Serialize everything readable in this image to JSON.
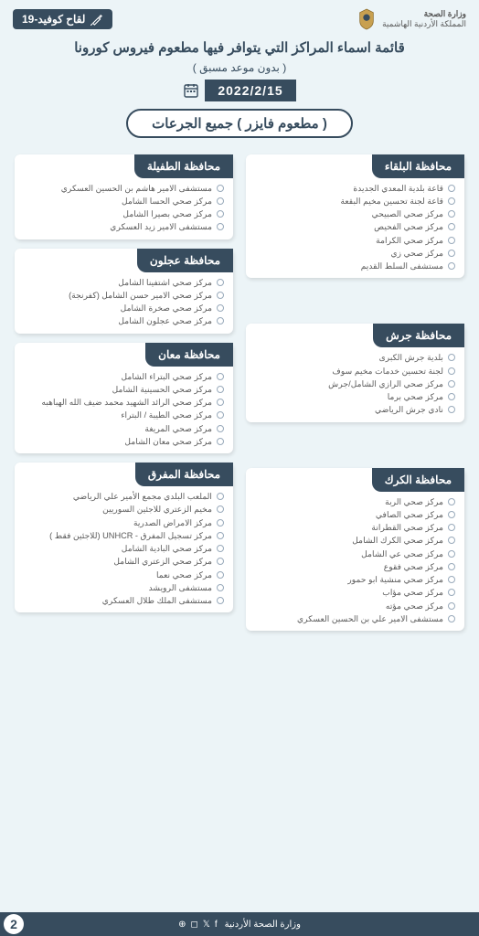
{
  "colors": {
    "accent": "#374c5e",
    "background": "#ecf4f7",
    "card_bg": "#ffffff",
    "text_muted": "#595959",
    "bullet_border": "#99aabb"
  },
  "topbar": {
    "ministry_line1": "وزارة الصحة",
    "ministry_line2": "المملكة الأردنية الهاشمية",
    "vaccine_tag": "لقاح كوفيد-19"
  },
  "title": {
    "main": "قائمة اسماء المراكز التي يتوافر فيها مطعوم فيروس كورونا",
    "sub": "( بدون موعد مسبق )",
    "date": "2022/2/15",
    "vaccine_type": "( مطعوم فايزر )  جميع الجرعات"
  },
  "right_cards": [
    {
      "header": "محافظة البلقاء",
      "items": [
        "قاعة بلدية المعدي الجديدة",
        "قاعة لجنة تحسين مخيم البقعة",
        "مركز صحي  الصبيحي",
        "مركز صحي الفحيص",
        "مركز صحي الكرامة",
        "مركز صحي زي",
        "مستشفى السلط القديم"
      ]
    },
    {
      "header": "محافظة جرش",
      "items": [
        "بلدية جرش الكبرى",
        "لجنة تحسين خدمات مخيم سوف",
        "مركز صحي الرازي الشامل/جرش",
        "مركز صحي برما",
        "نادي جرش الرياضي"
      ]
    },
    {
      "header": "محافظة الكرك",
      "items": [
        "مركز صحي الربة",
        "مركز صحي الصافي",
        "مركز صحي القطرانة",
        "مركز صحي الكرك الشامل",
        "مركز صحي عي الشامل",
        "مركز صحي فقوع",
        "مركز صحي منشية ابو حمور",
        "مركز صحي مؤاب",
        "مركز صحي مؤته",
        "مستشفى الامير علي بن الحسين العسكري"
      ]
    }
  ],
  "left_cards": [
    {
      "header": "محافظة الطفيلة",
      "items": [
        "مستشفى الامير هاشم بن الحسين العسكري",
        "مركز صحي الحسا الشامل",
        "مركز صحي بصيرا الشامل",
        "مستشفى الامير زيد العسكري"
      ]
    },
    {
      "header": "محافظة عجلون",
      "items": [
        "مركز صحي اشتفينا الشامل",
        "مركز صحي الامير حسن الشامل (كفرنجة)",
        "مركز صحي صخرة الشامل",
        "مركز صحي عجلون الشامل"
      ]
    },
    {
      "header": "محافظة معان",
      "items": [
        "مركز صحي البتراء الشامل",
        "مركز صحي الحسينية الشامل",
        "مركز صحي الرائد الشهيد محمد ضيف الله الهباهبه",
        "مركز صحي الطيبة / البتراء",
        "مركز صحي المريغة",
        "مركز صحي معان الشامل"
      ]
    },
    {
      "header": "محافظة المفرق",
      "items": [
        "الملعب البلدي مجمع الأمير علي الرياضي",
        "مخيم الزعتري للاجئين السوريين",
        "مركز الامراض الصدرية",
        "مركز تسجيل المفرق - UNHCR (للاجئين فقط )",
        "مركز صحي البادية الشامل",
        "مركز صحي الزعتري الشامل",
        "مركز صحي نعما",
        "مستشفى الرويشد",
        "مستشفى الملك طلال العسكري"
      ]
    }
  ],
  "footer": {
    "text": "وزارة الصحة الأردنية",
    "page": "2"
  }
}
